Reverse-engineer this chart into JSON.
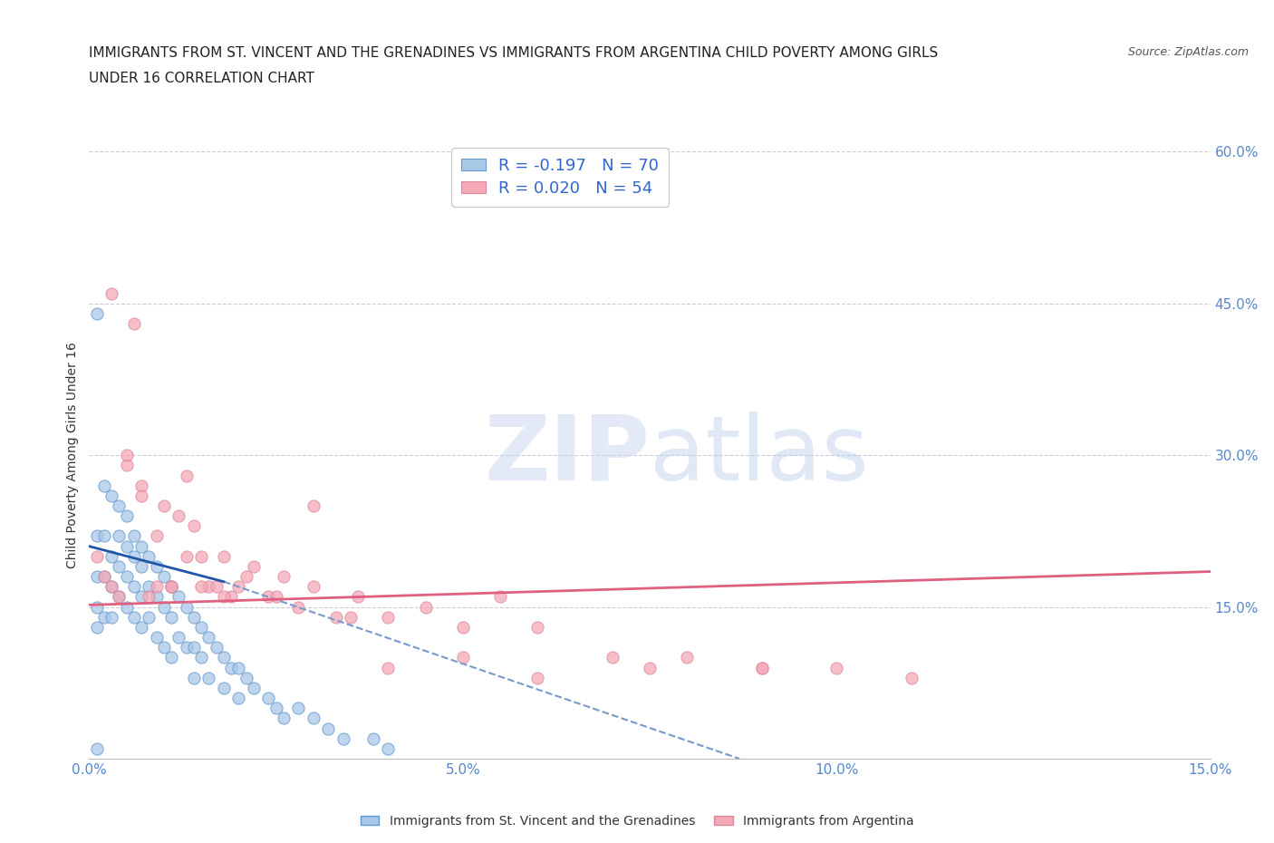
{
  "title_line1": "IMMIGRANTS FROM ST. VINCENT AND THE GRENADINES VS IMMIGRANTS FROM ARGENTINA CHILD POVERTY AMONG GIRLS",
  "title_line2": "UNDER 16 CORRELATION CHART",
  "source": "Source: ZipAtlas.com",
  "ylabel": "Child Poverty Among Girls Under 16",
  "xlim": [
    0.0,
    0.15
  ],
  "ylim": [
    0.0,
    0.6
  ],
  "xticks": [
    0.0,
    0.05,
    0.1,
    0.15
  ],
  "xticklabels": [
    "0.0%",
    "5.0%",
    "10.0%",
    "15.0%"
  ],
  "ytick_vals": [
    0.15,
    0.3,
    0.45,
    0.6
  ],
  "ytick_labels": [
    "15.0%",
    "30.0%",
    "45.0%",
    "60.0%"
  ],
  "watermark": "ZIPatlas",
  "blue_color": "#a8c8e8",
  "blue_edge": "#6699cc",
  "pink_color": "#f4a8b8",
  "pink_edge": "#dd8899",
  "trend_blue_solid": "#2255aa",
  "trend_blue_dash": "#7799cc",
  "trend_pink": "#e06080",
  "axis_tick_color": "#5588cc",
  "grid_color": "#ccccdd",
  "background": "#ffffff",
  "title_fontsize": 11,
  "tick_fontsize": 11,
  "ylabel_fontsize": 10,
  "watermark_color": "#d0ddf0",
  "legend_entries": [
    "R = -0.197   N = 70",
    "R = 0.020   N = 54"
  ],
  "bottom_legend": [
    "Immigrants from St. Vincent and the Grenadines",
    "Immigrants from Argentina"
  ],
  "blue_x": [
    0.001,
    0.001,
    0.001,
    0.001,
    0.001,
    0.002,
    0.002,
    0.002,
    0.002,
    0.003,
    0.003,
    0.003,
    0.003,
    0.004,
    0.004,
    0.004,
    0.004,
    0.005,
    0.005,
    0.005,
    0.005,
    0.006,
    0.006,
    0.006,
    0.006,
    0.007,
    0.007,
    0.007,
    0.007,
    0.008,
    0.008,
    0.008,
    0.009,
    0.009,
    0.009,
    0.01,
    0.01,
    0.01,
    0.011,
    0.011,
    0.011,
    0.012,
    0.012,
    0.013,
    0.013,
    0.014,
    0.014,
    0.014,
    0.015,
    0.015,
    0.016,
    0.016,
    0.017,
    0.018,
    0.018,
    0.019,
    0.02,
    0.02,
    0.021,
    0.022,
    0.024,
    0.025,
    0.026,
    0.028,
    0.03,
    0.032,
    0.034,
    0.038,
    0.04,
    0.001
  ],
  "blue_y": [
    0.44,
    0.22,
    0.18,
    0.15,
    0.13,
    0.27,
    0.22,
    0.18,
    0.14,
    0.26,
    0.2,
    0.17,
    0.14,
    0.25,
    0.22,
    0.19,
    0.16,
    0.24,
    0.21,
    0.18,
    0.15,
    0.22,
    0.2,
    0.17,
    0.14,
    0.21,
    0.19,
    0.16,
    0.13,
    0.2,
    0.17,
    0.14,
    0.19,
    0.16,
    0.12,
    0.18,
    0.15,
    0.11,
    0.17,
    0.14,
    0.1,
    0.16,
    0.12,
    0.15,
    0.11,
    0.14,
    0.11,
    0.08,
    0.13,
    0.1,
    0.12,
    0.08,
    0.11,
    0.1,
    0.07,
    0.09,
    0.09,
    0.06,
    0.08,
    0.07,
    0.06,
    0.05,
    0.04,
    0.05,
    0.04,
    0.03,
    0.02,
    0.02,
    0.01,
    0.01
  ],
  "pink_x": [
    0.001,
    0.002,
    0.003,
    0.004,
    0.005,
    0.006,
    0.007,
    0.008,
    0.009,
    0.01,
    0.011,
    0.012,
    0.013,
    0.014,
    0.015,
    0.016,
    0.017,
    0.018,
    0.019,
    0.02,
    0.022,
    0.024,
    0.026,
    0.028,
    0.03,
    0.033,
    0.036,
    0.04,
    0.045,
    0.05,
    0.055,
    0.06,
    0.07,
    0.08,
    0.09,
    0.1,
    0.003,
    0.005,
    0.007,
    0.009,
    0.011,
    0.013,
    0.015,
    0.018,
    0.021,
    0.025,
    0.03,
    0.035,
    0.04,
    0.05,
    0.06,
    0.075,
    0.09,
    0.11
  ],
  "pink_y": [
    0.2,
    0.18,
    0.17,
    0.16,
    0.29,
    0.43,
    0.27,
    0.16,
    0.17,
    0.25,
    0.17,
    0.24,
    0.28,
    0.23,
    0.2,
    0.17,
    0.17,
    0.2,
    0.16,
    0.17,
    0.19,
    0.16,
    0.18,
    0.15,
    0.17,
    0.14,
    0.16,
    0.14,
    0.15,
    0.13,
    0.16,
    0.13,
    0.1,
    0.1,
    0.09,
    0.09,
    0.46,
    0.3,
    0.26,
    0.22,
    0.17,
    0.2,
    0.17,
    0.16,
    0.18,
    0.16,
    0.25,
    0.14,
    0.09,
    0.1,
    0.08,
    0.09,
    0.09,
    0.08
  ]
}
